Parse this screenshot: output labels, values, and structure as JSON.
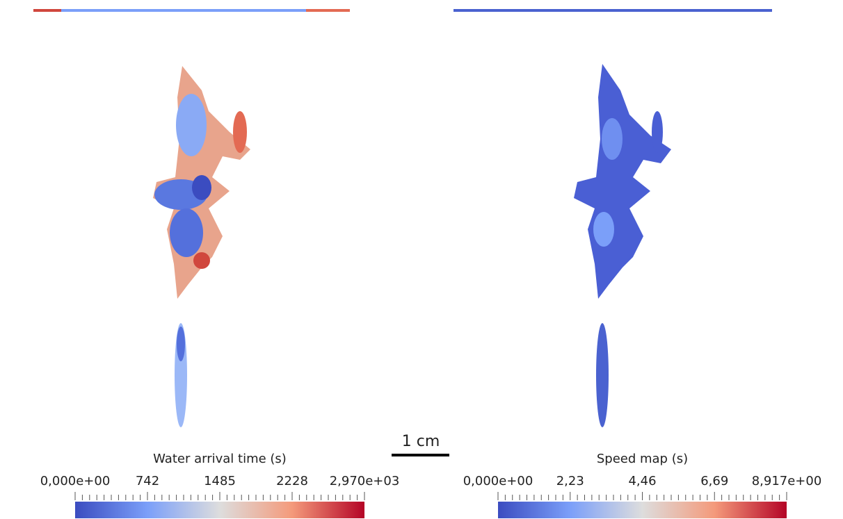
{
  "panels": [
    {
      "title": "Water arrival time (s)",
      "colorbar_labels": [
        "0,000e+00",
        "742",
        "1485",
        "2228",
        "2,970e+03"
      ]
    },
    {
      "title": "Speed map (s)",
      "colorbar_labels": [
        "0,000e+00",
        "2,23",
        "4,46",
        "6,69",
        "8,917e+00"
      ]
    }
  ],
  "scale_bar": {
    "label": "1 cm"
  }
}
